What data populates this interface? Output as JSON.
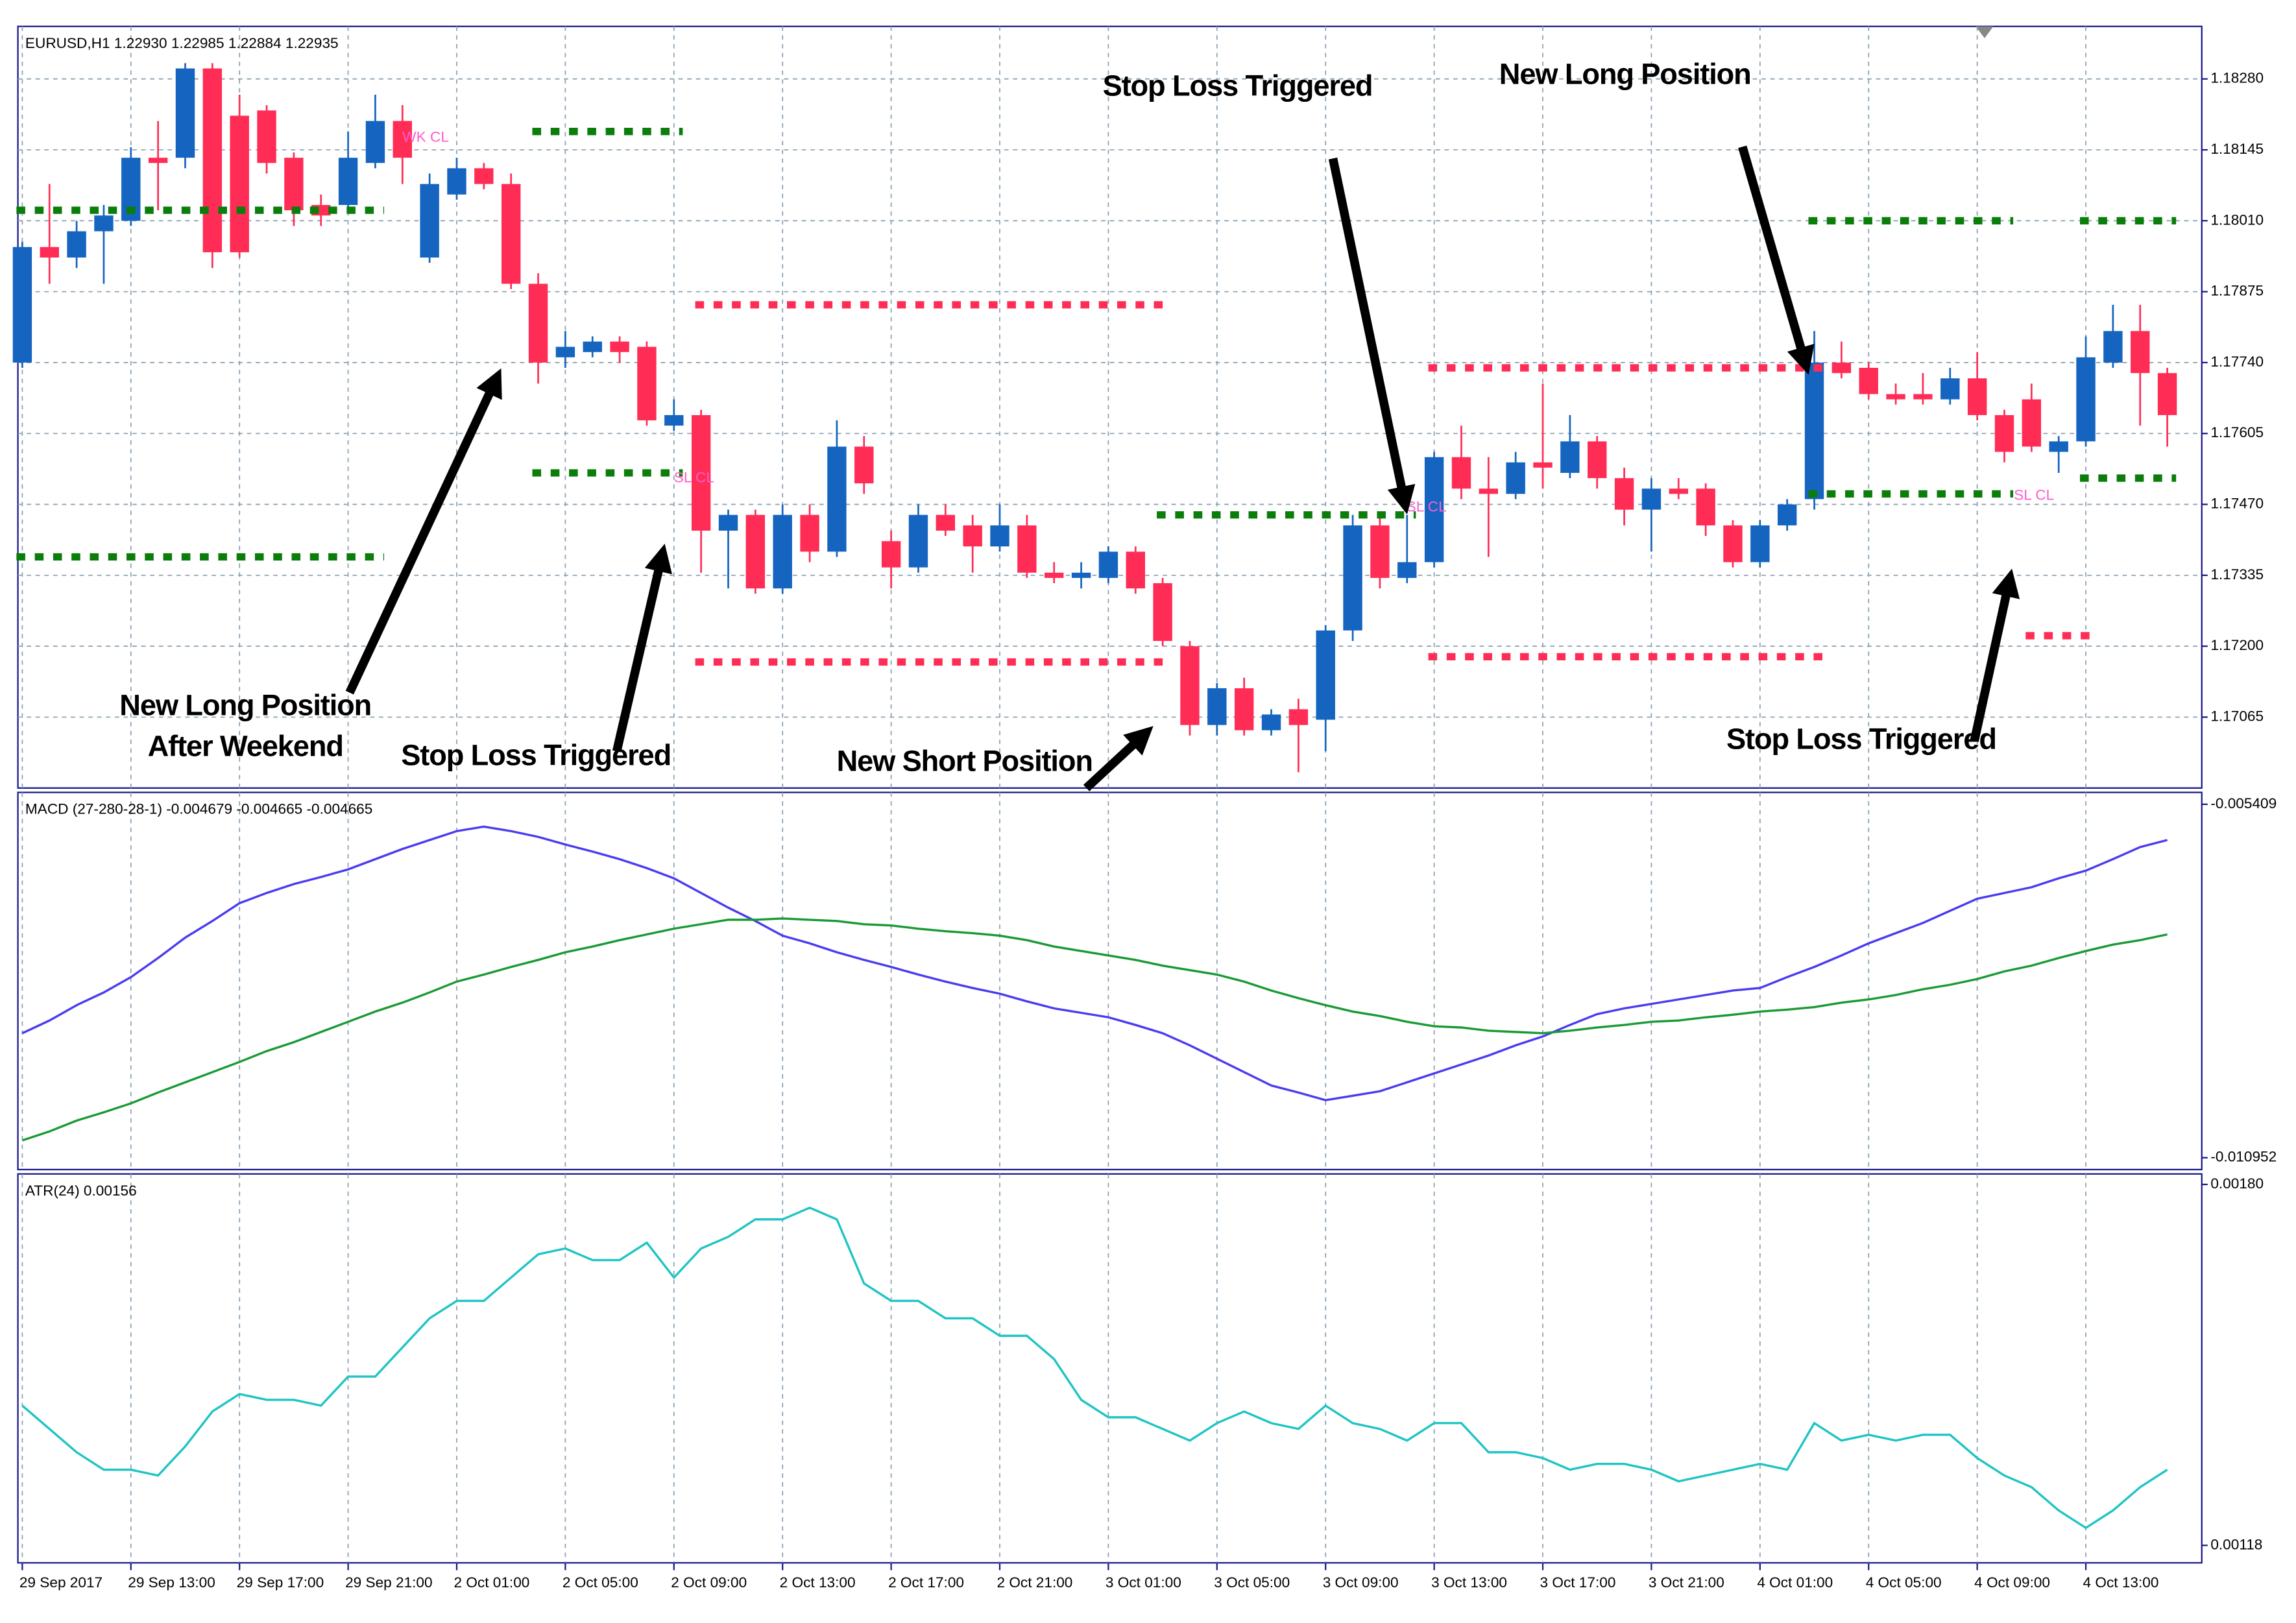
{
  "chart_data": [
    {
      "type": "candlestick",
      "title": "EURUSD,H1  1.22930 1.22985 1.22884 1.22935",
      "categories": [
        "29 Sep 2017",
        null,
        null,
        null,
        "29 Sep 13:00",
        null,
        null,
        null,
        "29 Sep 17:00",
        null,
        null,
        null,
        "29 Sep 21:00",
        null,
        null,
        null,
        "2 Oct 01:00",
        null,
        null,
        null,
        "2 Oct 05:00",
        null,
        null,
        null,
        "2 Oct 09:00",
        null,
        null,
        null,
        "2 Oct 13:00",
        null,
        null,
        null,
        "2 Oct 17:00",
        null,
        null,
        null,
        "2 Oct 21:00",
        null,
        null,
        null,
        "3 Oct 01:00",
        null,
        null,
        null,
        "3 Oct 05:00",
        null,
        null,
        null,
        "3 Oct 09:00",
        null,
        null,
        null,
        "3 Oct 13:00",
        null,
        null,
        null,
        "3 Oct 17:00",
        null,
        null,
        null,
        "3 Oct 21:00",
        null,
        null,
        null,
        "4 Oct 01:00",
        null,
        null,
        null,
        "4 Oct 05:00",
        null,
        null,
        null,
        "4 Oct 09:00",
        null,
        null,
        null,
        "4 Oct 13:00",
        null,
        null,
        null
      ],
      "open": [
        1.1774,
        1.1796,
        1.1794,
        1.1799,
        1.1801,
        1.1813,
        1.1813,
        1.183,
        1.1821,
        1.1822,
        1.1813,
        1.1804,
        1.1804,
        1.1812,
        1.182,
        1.1794,
        1.1806,
        1.1811,
        1.1808,
        1.1789,
        1.1775,
        1.1776,
        1.1778,
        1.1777,
        1.1762,
        1.1764,
        1.1742,
        1.1745,
        1.1731,
        1.1745,
        1.1738,
        1.1758,
        1.174,
        1.1735,
        1.1745,
        1.1743,
        1.1739,
        1.1743,
        1.1734,
        1.1733,
        1.1733,
        1.1738,
        1.1732,
        1.172,
        1.1705,
        1.1712,
        1.1704,
        1.1708,
        1.1706,
        1.1723,
        1.1743,
        1.1733,
        1.1736,
        1.1756,
        1.175,
        1.1749,
        1.1755,
        1.1753,
        1.1759,
        1.1752,
        1.1746,
        1.175,
        1.175,
        1.1743,
        1.1736,
        1.1743,
        1.1748,
        1.1774,
        1.1773,
        1.1768,
        1.1768,
        1.1767,
        1.1771,
        1.1764,
        1.1767,
        1.1757,
        1.1759,
        1.1774,
        1.178,
        1.1772
      ],
      "high": [
        1.1797,
        1.1808,
        1.1801,
        1.1804,
        1.1815,
        1.182,
        1.1831,
        1.1831,
        1.1825,
        1.1823,
        1.1814,
        1.1806,
        1.1818,
        1.1825,
        1.1823,
        1.181,
        1.1813,
        1.1812,
        1.181,
        1.1791,
        1.178,
        1.1779,
        1.1779,
        1.1778,
        1.1767,
        1.1765,
        1.1746,
        1.1746,
        1.1747,
        1.1747,
        1.1763,
        1.176,
        1.1742,
        1.1747,
        1.1747,
        1.1745,
        1.1747,
        1.1745,
        1.1736,
        1.1736,
        1.1739,
        1.1739,
        1.1733,
        1.1721,
        1.1713,
        1.1714,
        1.1708,
        1.171,
        1.1724,
        1.1745,
        1.1745,
        1.1745,
        1.1757,
        1.1762,
        1.1756,
        1.1757,
        1.177,
        1.1764,
        1.176,
        1.1754,
        1.1752,
        1.1752,
        1.1751,
        1.1744,
        1.1744,
        1.1748,
        1.178,
        1.1778,
        1.1774,
        1.177,
        1.1772,
        1.1773,
        1.1776,
        1.1765,
        1.177,
        1.176,
        1.1779,
        1.1785,
        1.1785,
        1.1773
      ],
      "low": [
        1.1773,
        1.1789,
        1.1792,
        1.1789,
        1.18,
        1.1803,
        1.1811,
        1.1792,
        1.1794,
        1.181,
        1.18,
        1.18,
        1.1803,
        1.1811,
        1.1808,
        1.1793,
        1.1805,
        1.1807,
        1.1788,
        1.177,
        1.1773,
        1.1775,
        1.1774,
        1.1762,
        1.1761,
        1.1734,
        1.1731,
        1.173,
        1.173,
        1.1736,
        1.1737,
        1.1749,
        1.1731,
        1.1734,
        1.1741,
        1.1734,
        1.1738,
        1.1733,
        1.1732,
        1.1731,
        1.1732,
        1.173,
        1.172,
        1.1703,
        1.1703,
        1.1703,
        1.1703,
        1.1696,
        1.17,
        1.1721,
        1.1731,
        1.1732,
        1.1735,
        1.1748,
        1.1737,
        1.1748,
        1.175,
        1.1752,
        1.175,
        1.1743,
        1.1738,
        1.1748,
        1.1741,
        1.1735,
        1.1735,
        1.1742,
        1.1746,
        1.1771,
        1.1767,
        1.1766,
        1.1766,
        1.1766,
        1.1763,
        1.1755,
        1.1757,
        1.1753,
        1.1758,
        1.1773,
        1.1762,
        1.1758
      ],
      "close": [
        1.1796,
        1.1794,
        1.1799,
        1.1802,
        1.1813,
        1.1812,
        1.183,
        1.1795,
        1.1795,
        1.1812,
        1.1803,
        1.1802,
        1.1813,
        1.182,
        1.1813,
        1.1808,
        1.1811,
        1.1808,
        1.1789,
        1.1774,
        1.1777,
        1.1778,
        1.1776,
        1.1763,
        1.1764,
        1.1742,
        1.1745,
        1.1731,
        1.1745,
        1.1738,
        1.1758,
        1.1751,
        1.1735,
        1.1745,
        1.1742,
        1.1739,
        1.1743,
        1.1734,
        1.1733,
        1.1734,
        1.1738,
        1.1731,
        1.1721,
        1.1705,
        1.1712,
        1.1704,
        1.1707,
        1.1705,
        1.1723,
        1.1743,
        1.1733,
        1.1736,
        1.1756,
        1.175,
        1.1749,
        1.1755,
        1.1754,
        1.1759,
        1.1752,
        1.1746,
        1.175,
        1.1749,
        1.1743,
        1.1736,
        1.1743,
        1.1747,
        1.1774,
        1.1772,
        1.1768,
        1.1767,
        1.1767,
        1.1771,
        1.1764,
        1.1757,
        1.1758,
        1.1759,
        1.1775,
        1.178,
        1.1772,
        1.1764
      ],
      "up_color": "#1565c0",
      "down_color": "#ff2d55",
      "ylim": [
        1.1693,
        1.1838
      ],
      "yticks": [
        {
          "value": 1.1828,
          "label": "1.18280"
        },
        {
          "value": 1.18145,
          "label": "1.18145"
        },
        {
          "value": 1.1801,
          "label": "1.18010"
        },
        {
          "value": 1.17875,
          "label": "1.17875"
        },
        {
          "value": 1.1774,
          "label": "1.17740"
        },
        {
          "value": 1.17605,
          "label": "1.17605"
        },
        {
          "value": 1.1747,
          "label": "1.17470"
        },
        {
          "value": 1.17335,
          "label": "1.17335"
        },
        {
          "value": 1.172,
          "label": "1.17200"
        },
        {
          "value": 1.17065,
          "label": "1.17065"
        }
      ],
      "grid": true,
      "levels": [
        {
          "value": 1.1818,
          "from": 19,
          "to": 24,
          "color": "#0a7d0a"
        },
        {
          "value": 1.1803,
          "from": 0,
          "to": 13,
          "color": "#0a7d0a"
        },
        {
          "value": 1.1737,
          "from": 0,
          "to": 13,
          "color": "#0a7d0a"
        },
        {
          "value": 1.1753,
          "from": 19,
          "to": 24,
          "color": "#0a7d0a"
        },
        {
          "value": 1.1785,
          "from": 25,
          "to": 42,
          "color": "#ff2d55"
        },
        {
          "value": 1.1717,
          "from": 25,
          "to": 42,
          "color": "#ff2d55"
        },
        {
          "value": 1.1745,
          "from": 42,
          "to": 51,
          "color": "#0a7d0a"
        },
        {
          "value": 1.1773,
          "from": 52,
          "to": 66,
          "color": "#ff2d55"
        },
        {
          "value": 1.1718,
          "from": 52,
          "to": 66,
          "color": "#ff2d55"
        },
        {
          "value": 1.1801,
          "from": 66,
          "to": 73,
          "color": "#0a7d0a"
        },
        {
          "value": 1.1749,
          "from": 66,
          "to": 73,
          "color": "#0a7d0a"
        },
        {
          "value": 1.1801,
          "from": 76,
          "to": 79,
          "color": "#0a7d0a"
        },
        {
          "value": 1.1752,
          "from": 76,
          "to": 79,
          "color": "#0a7d0a"
        },
        {
          "value": 1.1722,
          "from": 74,
          "to": 76,
          "color": "#ff2d55"
        }
      ],
      "trade_labels": [
        "WK CL",
        "SL CL",
        "SL CL",
        "SL CL"
      ],
      "annotations": [
        "Stop Loss Triggered",
        "New Long Position",
        "New Long Position",
        "After Weekend",
        "Stop Loss Triggered",
        "New Short Position",
        "Stop Loss Triggered"
      ]
    },
    {
      "type": "line",
      "title": "MACD (27-280-28-1) -0.004679 -0.004665 -0.004665",
      "ylim": [
        -0.011138,
        -0.005223
      ],
      "yticks": [
        -0.005409,
        -0.010952
      ],
      "series": [
        {
          "color": "#4a3cf0",
          "values": [
            -0.009,
            -0.0088,
            -0.00856,
            -0.00836,
            -0.00812,
            -0.00782,
            -0.0075,
            -0.00724,
            -0.00696,
            -0.0068,
            -0.00666,
            -0.00655,
            -0.00643,
            -0.00627,
            -0.00611,
            -0.00597,
            -0.00583,
            -0.00576,
            -0.00583,
            -0.00592,
            -0.00604,
            -0.00615,
            -0.00627,
            -0.00641,
            -0.00657,
            -0.0068,
            -0.00703,
            -0.00724,
            -0.00747,
            -0.00759,
            -0.00773,
            -0.00785,
            -0.00796,
            -0.00808,
            -0.00819,
            -0.00829,
            -0.00838,
            -0.0085,
            -0.00861,
            -0.00868,
            -0.00875,
            -0.00887,
            -0.009,
            -0.00919,
            -0.0094,
            -0.00961,
            -0.00982,
            -0.00993,
            -0.01005,
            -0.00998,
            -0.00991,
            -0.00977,
            -0.00963,
            -0.00949,
            -0.00935,
            -0.00919,
            -0.00905,
            -0.00887,
            -0.0087,
            -0.00861,
            -0.00854,
            -0.00847,
            -0.0084,
            -0.00833,
            -0.00829,
            -0.00812,
            -0.00796,
            -0.00778,
            -0.00759,
            -0.00743,
            -0.00727,
            -0.00708,
            -0.00689,
            -0.0068,
            -0.00671,
            -0.00657,
            -0.00645,
            -0.00627,
            -0.00608,
            -0.00597
          ]
        },
        {
          "color": "#1a9a35",
          "values": [
            -0.01068,
            -0.01054,
            -0.01037,
            -0.01024,
            -0.0101,
            -0.00993,
            -0.00977,
            -0.00961,
            -0.00945,
            -0.00928,
            -0.00914,
            -0.00898,
            -0.00882,
            -0.00866,
            -0.00852,
            -0.00836,
            -0.00819,
            -0.00808,
            -0.00796,
            -0.00785,
            -0.00773,
            -0.00764,
            -0.00754,
            -0.00745,
            -0.00736,
            -0.00729,
            -0.00722,
            -0.00722,
            -0.0072,
            -0.00722,
            -0.00724,
            -0.00729,
            -0.00731,
            -0.00736,
            -0.0074,
            -0.00743,
            -0.00747,
            -0.00754,
            -0.00764,
            -0.00771,
            -0.00778,
            -0.00785,
            -0.00794,
            -0.00801,
            -0.00808,
            -0.00819,
            -0.00833,
            -0.00845,
            -0.00856,
            -0.00866,
            -0.00873,
            -0.00882,
            -0.00889,
            -0.00891,
            -0.00896,
            -0.00898,
            -0.009,
            -0.00896,
            -0.00891,
            -0.00887,
            -0.00882,
            -0.0088,
            -0.00875,
            -0.00871,
            -0.00866,
            -0.00863,
            -0.00859,
            -0.00852,
            -0.00847,
            -0.0084,
            -0.00831,
            -0.00824,
            -0.00815,
            -0.00803,
            -0.00794,
            -0.00782,
            -0.00771,
            -0.00761,
            -0.00754,
            -0.00745
          ]
        }
      ]
    },
    {
      "type": "line",
      "title": "ATR(24) 0.00156",
      "ylim": [
        0.00115,
        0.001818
      ],
      "yticks": [
        {
          "value": 0.0018,
          "label": "0.00180"
        },
        0.00118
      ],
      "series": [
        {
          "color": "#1fc4c4",
          "values": [
            0.00142,
            0.00138,
            0.00134,
            0.00131,
            0.00131,
            0.0013,
            0.00135,
            0.00141,
            0.00144,
            0.00143,
            0.00143,
            0.00142,
            0.00147,
            0.00147,
            0.00152,
            0.00157,
            0.0016,
            0.0016,
            0.00164,
            0.00168,
            0.00169,
            0.00167,
            0.00167,
            0.0017,
            0.00164,
            0.00169,
            0.00171,
            0.00174,
            0.00174,
            0.00176,
            0.00174,
            0.00163,
            0.0016,
            0.0016,
            0.00157,
            0.00157,
            0.00154,
            0.00154,
            0.0015,
            0.00143,
            0.0014,
            0.0014,
            0.00138,
            0.00136,
            0.00139,
            0.00141,
            0.00139,
            0.00138,
            0.00142,
            0.00139,
            0.00138,
            0.00136,
            0.00139,
            0.00139,
            0.00134,
            0.00134,
            0.00133,
            0.00131,
            0.00132,
            0.00132,
            0.00131,
            0.00129,
            0.0013,
            0.00131,
            0.00132,
            0.00131,
            0.00139,
            0.00136,
            0.00137,
            0.00136,
            0.00137,
            0.00137,
            0.00133,
            0.0013,
            0.00128,
            0.00124,
            0.00121,
            0.00124,
            0.00128,
            0.00131
          ]
        }
      ]
    }
  ]
}
